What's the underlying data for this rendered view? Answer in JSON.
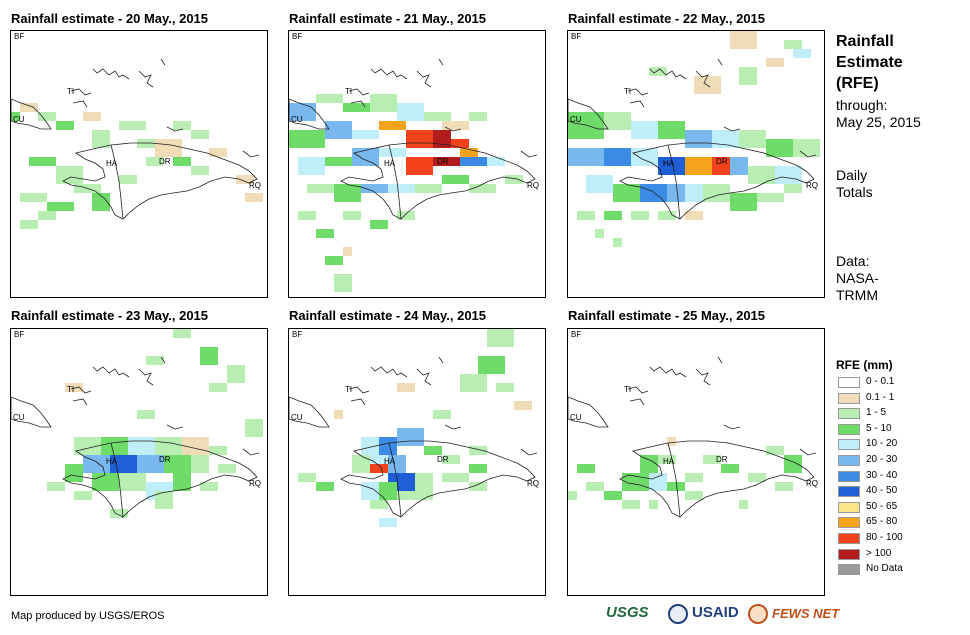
{
  "panels": [
    {
      "title": "Rainfall estimate - 20 May., 2015",
      "labels": {
        "bf": "BF",
        "cu": "CU",
        "ti": "TI",
        "ha": "HA",
        "dr": "DR",
        "rq": "RQ"
      }
    },
    {
      "title": "Rainfall estimate - 21 May., 2015",
      "labels": {
        "bf": "BF",
        "cu": "CU",
        "ti": "TI",
        "ha": "HA",
        "dr": "DR",
        "rq": "RQ"
      }
    },
    {
      "title": "Rainfall estimate - 22 May., 2015",
      "labels": {
        "bf": "BF",
        "cu": "CU",
        "ti": "TI",
        "ha": "HA",
        "dr": "DR",
        "rq": "RQ"
      }
    },
    {
      "title": "Rainfall estimate - 23 May., 2015",
      "labels": {
        "bf": "BF",
        "cu": "CU",
        "ti": "TI",
        "ha": "HA",
        "dr": "DR",
        "rq": "RQ"
      }
    },
    {
      "title": "Rainfall estimate - 24 May., 2015",
      "labels": {
        "bf": "BF",
        "cu": "CU",
        "ti": "TI",
        "ha": "HA",
        "dr": "DR",
        "rq": "RQ"
      }
    },
    {
      "title": "Rainfall estimate - 25 May., 2015",
      "labels": {
        "bf": "BF",
        "cu": "CU",
        "ti": "TI",
        "ha": "HA",
        "dr": "DR",
        "rq": "RQ"
      }
    }
  ],
  "sidebar": {
    "title_line1": "Rainfall",
    "title_line2": "Estimate",
    "title_line3": "(RFE)",
    "through_line1": "through:",
    "through_line2": "May 25, 2015",
    "daily_line1": "Daily",
    "daily_line2": "Totals",
    "data_line1": "Data:",
    "data_line2": "NASA-",
    "data_line3": "TRMM"
  },
  "legend": {
    "title": "RFE (mm)",
    "items": [
      {
        "label": "0 - 0.1",
        "color": "#ffffff"
      },
      {
        "label": "0.1 - 1",
        "color": "#f1dcb8"
      },
      {
        "label": "1 - 5",
        "color": "#b9eeb3"
      },
      {
        "label": "5 - 10",
        "color": "#6fdc6a"
      },
      {
        "label": "10 - 20",
        "color": "#bfeef8"
      },
      {
        "label": "20 - 30",
        "color": "#78b8ef"
      },
      {
        "label": "30 - 40",
        "color": "#3b8ae6"
      },
      {
        "label": "40 - 50",
        "color": "#1e5fd6"
      },
      {
        "label": "50 - 65",
        "color": "#fbe38a"
      },
      {
        "label": "65 - 80",
        "color": "#f6a31c"
      },
      {
        "label": "80 - 100",
        "color": "#f2421c"
      },
      {
        "label": "> 100",
        "color": "#b21c1c"
      },
      {
        "label": "No Data",
        "color": "#9a9a9a"
      }
    ]
  },
  "footer": {
    "credit": "Map produced by USGS/EROS"
  },
  "logos": {
    "usgs": "USGS",
    "usaid": "USAID",
    "fewsnet": "FEWS NET"
  }
}
